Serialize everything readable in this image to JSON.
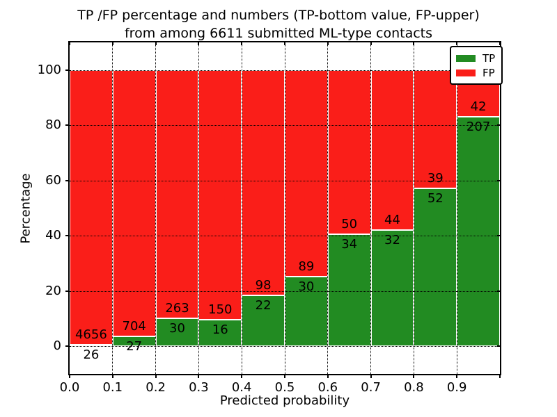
{
  "title": {
    "line1": "TP /FP percentage and numbers (TP-bottom value, FP-upper)",
    "line2": "from among 6611 submitted ML-type contacts"
  },
  "axes": {
    "xlabel": "Predicted probability",
    "ylabel": "Percentage",
    "x_tick_labels": [
      "0.0",
      "0.1",
      "0.2",
      "0.3",
      "0.4",
      "0.5",
      "0.6",
      "0.7",
      "0.8",
      "0.9"
    ],
    "y_tick_values": [
      0,
      20,
      40,
      60,
      80,
      100
    ],
    "ylim": [
      -10,
      110
    ],
    "xlim": [
      0.0,
      1.0
    ]
  },
  "legend": {
    "entries": [
      {
        "label": "TP",
        "color": "#228b22"
      },
      {
        "label": "FP",
        "color": "#fa1e19"
      }
    ]
  },
  "chart_data": {
    "type": "bar",
    "stacked": true,
    "normalized": "each bin scaled to 100%",
    "title": "TP /FP percentage and numbers (TP-bottom value, FP-upper) from among 6611 submitted ML-type contacts",
    "xlabel": "Predicted probability",
    "ylabel": "Percentage",
    "total_contacts": 6611,
    "bin_edges": [
      0.0,
      0.1,
      0.2,
      0.3,
      0.4,
      0.5,
      0.6,
      0.7,
      0.8,
      0.9,
      1.0
    ],
    "series": [
      {
        "name": "TP",
        "color": "#228b22",
        "counts": [
          26,
          27,
          30,
          16,
          22,
          30,
          34,
          32,
          52,
          207
        ]
      },
      {
        "name": "FP",
        "color": "#fa1e19",
        "counts": [
          4656,
          704,
          263,
          150,
          98,
          89,
          50,
          44,
          39,
          42
        ]
      }
    ],
    "tp_percent_by_bin": [
      0.56,
      3.69,
      10.24,
      9.64,
      18.33,
      25.21,
      40.48,
      42.11,
      57.14,
      83.13
    ],
    "ylim": [
      -10,
      110
    ],
    "grid": "dotted, both axes, drawn over bars",
    "legend_position": "upper right"
  }
}
